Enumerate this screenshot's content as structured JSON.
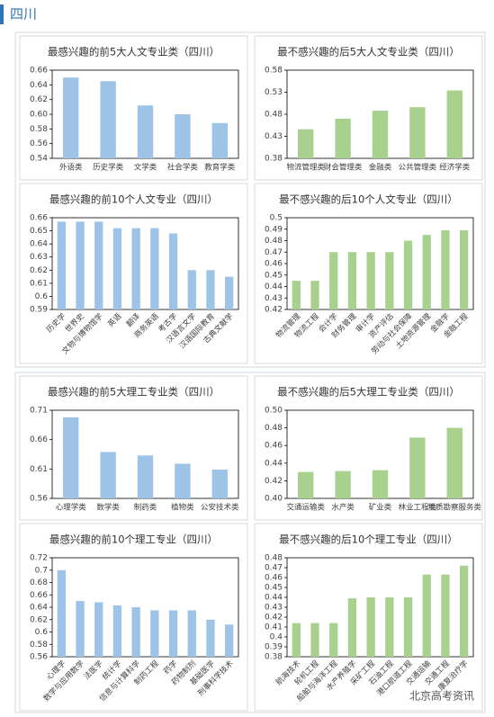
{
  "header": {
    "title": "四川"
  },
  "watermark": "北京高考资讯",
  "chart_data": [
    {
      "type": "bar",
      "title": "最感兴趣的前5大人文专业类（四川）",
      "color": "#9dc3e6",
      "categories": [
        "外语类",
        "历史学类",
        "文学类",
        "社会学类",
        "教育学类"
      ],
      "values": [
        0.65,
        0.645,
        0.612,
        0.6,
        0.588
      ],
      "ylim": [
        0.54,
        0.66
      ],
      "yticks": [
        0.54,
        0.56,
        0.58,
        {
          "value": 0.6,
          "label": "0.60"
        },
        0.62,
        0.64,
        0.66
      ]
    },
    {
      "type": "bar",
      "title": "最不感兴趣的后5大人文专业类（四川）",
      "color": "#a9d18e",
      "categories": [
        "物流管理类",
        "财会管理类",
        "金融类",
        "公共管理类",
        "经济学类"
      ],
      "values": [
        0.446,
        0.47,
        0.488,
        0.496,
        0.534
      ],
      "ylim": [
        0.38,
        0.58
      ],
      "yticks": [
        0.38,
        0.43,
        0.48,
        0.53,
        0.58
      ]
    },
    {
      "type": "bar",
      "title": "最感兴趣的前10个人文专业（四川）",
      "color": "#9dc3e6",
      "categories": [
        "历史学",
        "世界史",
        "文物与博物馆学",
        "英语",
        "翻译",
        "商务英语",
        "考古学",
        "汉语言文学",
        "汉语国际教育",
        "古典文献学"
      ],
      "values": [
        0.657,
        0.657,
        0.657,
        0.652,
        0.652,
        0.652,
        0.648,
        0.62,
        0.62,
        0.615
      ],
      "ylim": [
        0.59,
        0.66
      ],
      "yticks": [
        0.59,
        0.6,
        0.61,
        0.62,
        0.63,
        0.64,
        0.65,
        0.66
      ]
    },
    {
      "type": "bar",
      "title": "最不感兴趣的后10个人文专业（四川）",
      "color": "#a9d18e",
      "categories": [
        "物流管理",
        "物流工程",
        "会计学",
        "财务管理",
        "审计学",
        "资产评估",
        "劳动与社会保障",
        "土地资源管理",
        "金融学",
        "金融工程"
      ],
      "values": [
        0.445,
        0.445,
        0.47,
        0.47,
        0.47,
        0.47,
        0.48,
        0.485,
        0.489,
        0.489
      ],
      "ylim": [
        0.42,
        0.5
      ],
      "yticks": [
        0.42,
        0.43,
        0.44,
        0.45,
        0.46,
        0.47,
        0.48,
        0.49,
        0.5
      ]
    },
    {
      "type": "bar",
      "title": "最感兴趣的前5大理工专业类（四川）",
      "color": "#9dc3e6",
      "categories": [
        "心理学类",
        "数学类",
        "制药类",
        "植物类",
        "公安技术类"
      ],
      "values": [
        0.698,
        0.639,
        0.633,
        0.619,
        0.609
      ],
      "ylim": [
        0.56,
        0.71
      ],
      "yticks": [
        0.56,
        0.61,
        0.66,
        0.71
      ]
    },
    {
      "type": "bar",
      "title": "最不感兴趣的后5大理工专业类（四川）",
      "color": "#a9d18e",
      "categories": [
        "交通运输类",
        "水产类",
        "矿业类",
        "林业工程类",
        "地质勘察服务类"
      ],
      "values": [
        0.43,
        0.431,
        0.432,
        0.469,
        0.48
      ],
      "ylim": [
        0.4,
        0.5
      ],
      "yticks": [
        {
          "value": 0.4,
          "label": "0.40"
        },
        0.42,
        0.44,
        0.46,
        0.48,
        {
          "value": 0.5,
          "label": "0.50"
        }
      ]
    },
    {
      "type": "bar",
      "title": "最感兴趣的前10个理工专业（四川）",
      "color": "#9dc3e6",
      "categories": [
        "心理学",
        "数学与应用数学",
        "法医学",
        "统计学",
        "信息与计算科学",
        "制药工程",
        "药学",
        "药物制剂",
        "基础医学",
        "刑事科学技术"
      ],
      "values": [
        0.7,
        0.65,
        0.648,
        0.643,
        0.64,
        0.635,
        0.635,
        0.635,
        0.62,
        0.612
      ],
      "ylim": [
        0.56,
        0.72
      ],
      "yticks": [
        0.56,
        0.58,
        0.6,
        0.62,
        0.64,
        0.66,
        0.68,
        0.7,
        0.72
      ]
    },
    {
      "type": "bar",
      "title": "最不感兴趣的后10个理工专业（四川）",
      "color": "#a9d18e",
      "categories": [
        "航海技术",
        "轮机工程",
        "船舶与海洋工程",
        "水产养殖学",
        "采矿工程",
        "石油工程",
        "港口航道工程",
        "交通运输",
        "交通工程",
        "康复治疗学"
      ],
      "values": [
        0.414,
        0.414,
        0.414,
        0.439,
        0.44,
        0.44,
        0.44,
        0.463,
        0.463,
        0.472
      ],
      "ylim": [
        0.38,
        0.48
      ],
      "yticks": [
        0.38,
        0.39,
        0.4,
        0.41,
        0.42,
        0.43,
        0.44,
        0.45,
        0.46,
        0.47,
        0.48
      ]
    }
  ]
}
